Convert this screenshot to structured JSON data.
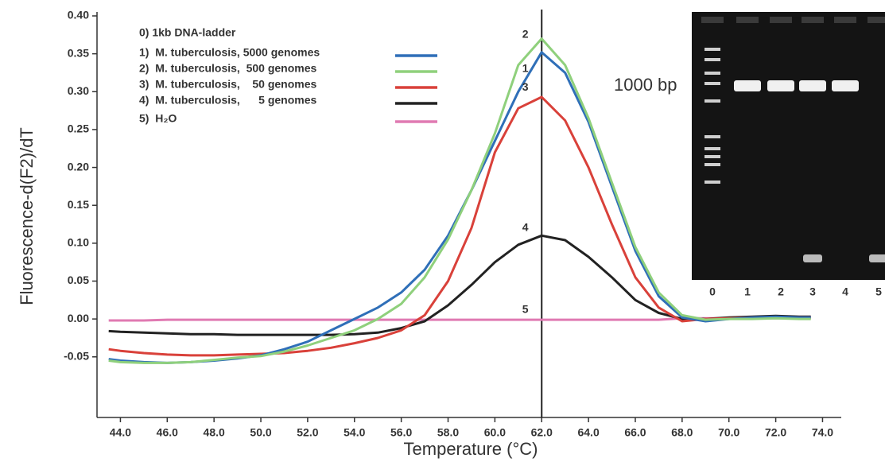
{
  "chart_data": {
    "type": "line",
    "x_label": "Temperature (°C)",
    "y_label": "Fluorescence-d(F2)/dT",
    "legend_header": "0)  1kb DNA-ladder",
    "x": [
      43.5,
      44,
      45,
      46,
      47,
      48,
      49,
      50,
      51,
      52,
      53,
      54,
      55,
      56,
      57,
      58,
      59,
      60,
      61,
      62,
      63,
      64,
      65,
      66,
      67,
      68,
      69,
      70,
      71,
      72,
      73,
      73.5
    ],
    "series": [
      {
        "name": "1)  M. tuberculosis, 5000 genomes",
        "color": "#2f6fb8",
        "values": [
          -0.053,
          -0.055,
          -0.057,
          -0.058,
          -0.057,
          -0.055,
          -0.052,
          -0.048,
          -0.04,
          -0.03,
          -0.015,
          0.0,
          0.015,
          0.035,
          0.065,
          0.11,
          0.17,
          0.235,
          0.3,
          0.352,
          0.325,
          0.26,
          0.175,
          0.09,
          0.03,
          0.002,
          -0.003,
          0.0,
          0.002,
          0.003,
          0.002,
          0.002
        ]
      },
      {
        "name": "2)  M. tuberculosis,  500 genomes",
        "color": "#8fd07c",
        "values": [
          -0.055,
          -0.057,
          -0.058,
          -0.058,
          -0.057,
          -0.054,
          -0.051,
          -0.049,
          -0.043,
          -0.035,
          -0.025,
          -0.015,
          0.0,
          0.02,
          0.055,
          0.105,
          0.17,
          0.245,
          0.335,
          0.37,
          0.335,
          0.265,
          0.18,
          0.095,
          0.035,
          0.005,
          -0.001,
          0.0,
          0.0,
          0.001,
          0.0,
          0.0
        ]
      },
      {
        "name": "3)  M. tuberculosis,    50 genomes",
        "color": "#d9413a",
        "values": [
          -0.04,
          -0.042,
          -0.045,
          -0.047,
          -0.048,
          -0.048,
          -0.047,
          -0.046,
          -0.045,
          -0.042,
          -0.038,
          -0.032,
          -0.025,
          -0.015,
          0.005,
          0.05,
          0.12,
          0.22,
          0.278,
          0.293,
          0.262,
          0.2,
          0.125,
          0.055,
          0.015,
          -0.003,
          0.0,
          0.001,
          0.002,
          0.002,
          0.002,
          0.002
        ]
      },
      {
        "name": "4)  M. tuberculosis,      5 genomes",
        "color": "#222222",
        "values": [
          -0.016,
          -0.017,
          -0.018,
          -0.019,
          -0.02,
          -0.02,
          -0.021,
          -0.021,
          -0.021,
          -0.021,
          -0.021,
          -0.02,
          -0.018,
          -0.012,
          -0.003,
          0.018,
          0.045,
          0.075,
          0.098,
          0.11,
          0.104,
          0.082,
          0.055,
          0.025,
          0.008,
          0.0,
          0.0,
          0.002,
          0.003,
          0.004,
          0.003,
          0.003
        ]
      },
      {
        "name": "5)  H₂O",
        "color": "#e07ab2",
        "values": [
          -0.002,
          -0.002,
          -0.002,
          -0.001,
          -0.001,
          -0.001,
          -0.001,
          -0.001,
          -0.001,
          -0.001,
          -0.001,
          -0.001,
          -0.001,
          -0.001,
          -0.001,
          -0.001,
          -0.001,
          -0.001,
          -0.001,
          -0.001,
          -0.001,
          -0.001,
          -0.001,
          -0.001,
          -0.001,
          0.001,
          0.001,
          0.001,
          0.001,
          0.001,
          0.001,
          0.001
        ]
      }
    ],
    "xlim": [
      43,
      74.8
    ],
    "ylim": [
      -0.13,
      0.4
    ],
    "xticks": [
      {
        "value": 44,
        "label": "44.0"
      },
      {
        "value": 46,
        "label": "46.0"
      },
      {
        "value": 48,
        "label": "48.0"
      },
      {
        "value": 50,
        "label": "50.0"
      },
      {
        "value": 52,
        "label": "52.0"
      },
      {
        "value": 54,
        "label": "54.0"
      },
      {
        "value": 56,
        "label": "56.0"
      },
      {
        "value": 58,
        "label": "58.0"
      },
      {
        "value": 60,
        "label": "60.0"
      },
      {
        "value": 62,
        "label": "62.0"
      },
      {
        "value": 64,
        "label": "64.0"
      },
      {
        "value": 66,
        "label": "66.0"
      },
      {
        "value": 68,
        "label": "68.0"
      },
      {
        "value": 70,
        "label": "70.0"
      },
      {
        "value": 72,
        "label": "72.0"
      },
      {
        "value": 74,
        "label": "74.0"
      }
    ],
    "yticks": [
      {
        "value": -0.05,
        "label": "-0.05"
      },
      {
        "value": 0,
        "label": "0.00"
      },
      {
        "value": 0.05,
        "label": "0.05"
      },
      {
        "value": 0.1,
        "label": "0.10"
      },
      {
        "value": 0.15,
        "label": "0.15"
      },
      {
        "value": 0.2,
        "label": "0.20"
      },
      {
        "value": 0.25,
        "label": "0.25"
      },
      {
        "value": 0.3,
        "label": "0.30"
      },
      {
        "value": 0.35,
        "label": "0.35"
      },
      {
        "value": 0.4,
        "label": "0.40"
      }
    ],
    "vline": 62,
    "annotations": [
      {
        "text": "2",
        "x": 61.3,
        "y": 0.375
      },
      {
        "text": "1",
        "x": 61.3,
        "y": 0.33
      },
      {
        "text": "3",
        "x": 61.3,
        "y": 0.305
      },
      {
        "text": "4",
        "x": 61.3,
        "y": 0.12
      },
      {
        "text": "5",
        "x": 61.3,
        "y": 0.012
      }
    ],
    "inset": {
      "label": "1000 bp",
      "lanes": [
        "0",
        "1",
        "2",
        "3",
        "4",
        "5"
      ]
    }
  }
}
